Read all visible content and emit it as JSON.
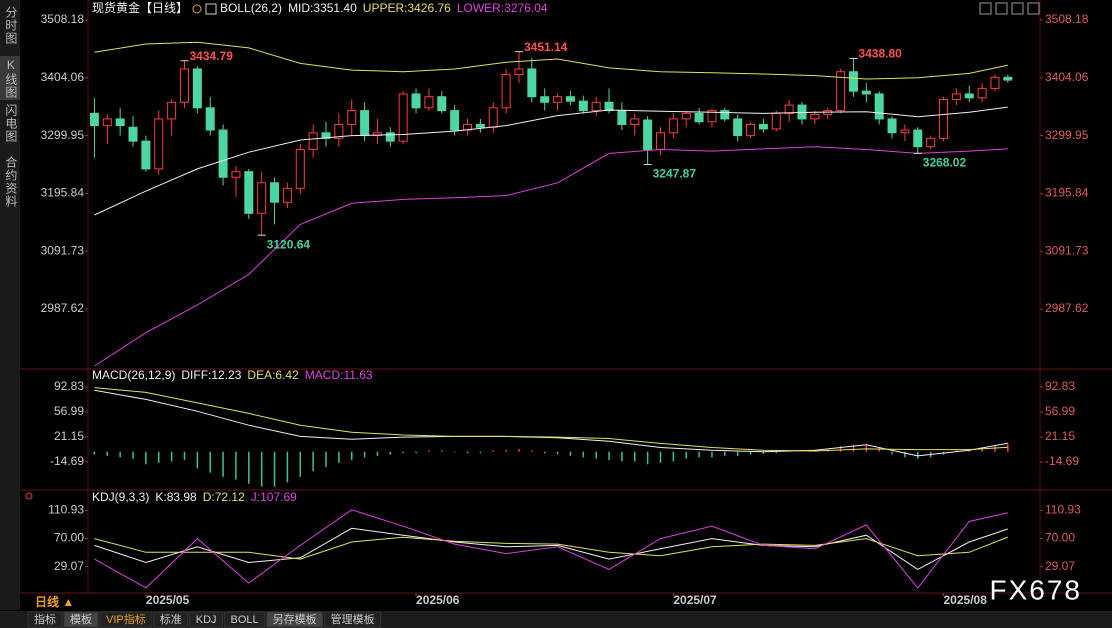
{
  "sidebar": {
    "tabs": [
      "分时图",
      "K线图",
      "闪电图",
      "合约资料"
    ]
  },
  "chart_data": [
    {
      "type": "candlestick",
      "title": "现货黄金【日线】",
      "indicator": "BOLL(26,2)",
      "up_color": "#ff3b3b",
      "down_color": "#4ed6a2",
      "open": [
        3340,
        3318,
        3330,
        3315,
        3290,
        3240,
        3330,
        3360,
        3420,
        3350,
        3310,
        3225,
        3235,
        3160,
        3215,
        3180,
        3205,
        3275,
        3305,
        3295,
        3320,
        3345,
        3300,
        3305,
        3290,
        3375,
        3350,
        3370,
        3345,
        3310,
        3320,
        3315,
        3350,
        3410,
        3420,
        3370,
        3360,
        3370,
        3362,
        3345,
        3360,
        3345,
        3320,
        3328,
        3275,
        3305,
        3330,
        3340,
        3325,
        3345,
        3330,
        3300,
        3320,
        3312,
        3340,
        3355,
        3330,
        3338,
        3345,
        3415,
        3380,
        3375,
        3330,
        3305,
        3310,
        3280,
        3295,
        3365,
        3375,
        3368,
        3385,
        3405
      ],
      "high": [
        3368,
        3338,
        3350,
        3335,
        3300,
        3345,
        3365,
        3434.79,
        3425,
        3370,
        3320,
        3245,
        3240,
        3235,
        3225,
        3215,
        3285,
        3320,
        3325,
        3340,
        3365,
        3360,
        3330,
        3315,
        3380,
        3385,
        3385,
        3380,
        3355,
        3330,
        3330,
        3360,
        3420,
        3451.14,
        3440,
        3385,
        3375,
        3380,
        3372,
        3370,
        3385,
        3360,
        3340,
        3335,
        3315,
        3340,
        3345,
        3350,
        3348,
        3350,
        3338,
        3325,
        3330,
        3345,
        3365,
        3360,
        3345,
        3350,
        3420,
        3438.8,
        3395,
        3380,
        3335,
        3320,
        3315,
        3300,
        3370,
        3385,
        3390,
        3395,
        3410,
        3410
      ],
      "low": [
        3260,
        3285,
        3300,
        3280,
        3235,
        3230,
        3300,
        3350,
        3340,
        3300,
        3210,
        3190,
        3150,
        3120.64,
        3140,
        3170,
        3195,
        3260,
        3280,
        3280,
        3300,
        3290,
        3285,
        3280,
        3285,
        3340,
        3345,
        3340,
        3300,
        3300,
        3305,
        3305,
        3340,
        3395,
        3360,
        3345,
        3345,
        3355,
        3340,
        3335,
        3340,
        3310,
        3300,
        3247.87,
        3265,
        3295,
        3315,
        3320,
        3315,
        3325,
        3290,
        3295,
        3305,
        3308,
        3325,
        3320,
        3320,
        3330,
        3340,
        3370,
        3360,
        3320,
        3295,
        3290,
        3268.02,
        3275,
        3290,
        3355,
        3360,
        3360,
        3380,
        3395
      ],
      "close": [
        3318,
        3330,
        3318,
        3290,
        3240,
        3330,
        3360,
        3420,
        3350,
        3310,
        3225,
        3235,
        3160,
        3215,
        3180,
        3205,
        3275,
        3305,
        3295,
        3320,
        3345,
        3300,
        3305,
        3290,
        3375,
        3350,
        3370,
        3345,
        3310,
        3320,
        3315,
        3350,
        3410,
        3420,
        3370,
        3360,
        3370,
        3362,
        3345,
        3360,
        3345,
        3320,
        3330,
        3275,
        3305,
        3330,
        3340,
        3325,
        3345,
        3330,
        3300,
        3320,
        3312,
        3340,
        3355,
        3330,
        3338,
        3345,
        3415,
        3380,
        3375,
        3330,
        3305,
        3310,
        3280,
        3295,
        3365,
        3375,
        3368,
        3385,
        3405,
        3400
      ],
      "series": [
        {
          "name": "MID:3351.40",
          "color": "#f0f0f0",
          "x": [
            0,
            4,
            8,
            12,
            16,
            20,
            24,
            28,
            32,
            36,
            40,
            44,
            48,
            52,
            56,
            60,
            64,
            68,
            71
          ],
          "values": [
            3157,
            3200,
            3240,
            3270,
            3292,
            3300,
            3302,
            3308,
            3318,
            3336,
            3346,
            3344,
            3342,
            3340,
            3342,
            3343,
            3334,
            3342,
            3351.4
          ]
        },
        {
          "name": "UPPER:3426.76",
          "color": "#e6e05a",
          "x": [
            0,
            4,
            8,
            12,
            16,
            20,
            24,
            28,
            32,
            36,
            40,
            44,
            48,
            52,
            56,
            60,
            64,
            68,
            71
          ],
          "values": [
            3450,
            3465,
            3468,
            3458,
            3430,
            3418,
            3415,
            3420,
            3432,
            3438,
            3422,
            3415,
            3413,
            3411,
            3408,
            3402,
            3404,
            3412,
            3426.76
          ]
        },
        {
          "name": "LOWER:3276.04",
          "color": "#e040e0",
          "x": [
            0,
            4,
            8,
            12,
            16,
            20,
            24,
            28,
            32,
            36,
            40,
            44,
            48,
            52,
            56,
            60,
            64,
            68,
            71
          ],
          "values": [
            2885,
            2945,
            2995,
            3050,
            3140,
            3178,
            3185,
            3188,
            3192,
            3215,
            3268,
            3275,
            3272,
            3276,
            3280,
            3275,
            3268,
            3272,
            3276.04
          ]
        }
      ],
      "annotations": [
        {
          "label": "3434.79",
          "x": 7,
          "y": 3434.79,
          "color": "#ff5050"
        },
        {
          "label": "3120.64",
          "x": 13,
          "y": 3120.64,
          "color": "#3fd39a"
        },
        {
          "label": "3451.14",
          "x": 33,
          "y": 3451.14,
          "color": "#ff5050"
        },
        {
          "label": "3247.87",
          "x": 43,
          "y": 3247.87,
          "color": "#3fd39a"
        },
        {
          "label": "3438.80",
          "x": 59,
          "y": 3438.8,
          "color": "#ff5050"
        },
        {
          "label": "3268.02",
          "x": 64,
          "y": 3268.02,
          "color": "#3fd39a"
        }
      ],
      "xlim": [
        -0.5,
        73.5
      ],
      "ylim": [
        2883.2,
        3526.2
      ],
      "yticks": [
        3508.18,
        3404.06,
        3299.95,
        3195.84,
        3091.73,
        2987.62
      ]
    },
    {
      "type": "macd",
      "title": "MACD(26,12,9)",
      "name": "MACD:11.63",
      "name_color": "#e040e0",
      "up_color": "#ff3b3b",
      "down_color": "#3cc19a",
      "values": [
        -4,
        -6,
        -8,
        -10,
        -18,
        -16,
        -14,
        -12,
        -24,
        -30,
        -36,
        -40,
        -46,
        -50,
        -50,
        -44,
        -36,
        -28,
        -22,
        -16,
        -12,
        -8,
        -6,
        -4,
        -2,
        -2,
        2,
        2,
        -1,
        -2,
        -2,
        2,
        3,
        4,
        2,
        -2,
        -4,
        -6,
        -8,
        -10,
        -12,
        -14,
        -14,
        -18,
        -16,
        -14,
        -10,
        -8,
        -8,
        -6,
        -6,
        -4,
        -3,
        -2,
        2,
        2,
        2,
        3,
        8,
        10,
        9,
        6,
        -4,
        -8,
        -10,
        -8,
        -4,
        2,
        4,
        6,
        9,
        11.63
      ],
      "series": [
        {
          "name": "DIFF:12.23",
          "color": "#f0f0f0",
          "x": [
            0,
            4,
            8,
            12,
            16,
            20,
            24,
            28,
            32,
            36,
            40,
            44,
            48,
            52,
            56,
            60,
            64,
            68,
            71
          ],
          "values": [
            88,
            75,
            58,
            38,
            22,
            18,
            21,
            22,
            22,
            20,
            15,
            6,
            2,
            0,
            2,
            10,
            -6,
            2,
            12.23
          ]
        },
        {
          "name": "DEA:6.42",
          "color": "#e6e05a",
          "x": [
            0,
            4,
            8,
            12,
            16,
            20,
            24,
            28,
            32,
            36,
            40,
            44,
            48,
            52,
            56,
            60,
            64,
            68,
            71
          ],
          "values": [
            92,
            85,
            70,
            55,
            38,
            28,
            24,
            22,
            22,
            21,
            19,
            12,
            6,
            2,
            1,
            4,
            3,
            3,
            6.42
          ]
        }
      ],
      "xlim": [
        -0.5,
        73.5
      ],
      "ylim": [
        -52,
        114.3
      ],
      "yticks": [
        92.83,
        56.99,
        21.15,
        -14.69
      ]
    },
    {
      "type": "line",
      "title": "KDJ(9,3,3)",
      "series": [
        {
          "name": "K:83.98",
          "color": "#f0f0f0",
          "x": [
            0,
            4,
            8,
            12,
            16,
            20,
            24,
            28,
            32,
            36,
            40,
            44,
            48,
            52,
            56,
            60,
            64,
            68,
            71
          ],
          "values": [
            60,
            35,
            58,
            35,
            42,
            85,
            75,
            65,
            58,
            60,
            40,
            55,
            70,
            60,
            58,
            75,
            25,
            65,
            83.98
          ]
        },
        {
          "name": "D:72.12",
          "color": "#e6e05a",
          "x": [
            0,
            4,
            8,
            12,
            16,
            20,
            24,
            28,
            32,
            36,
            40,
            44,
            48,
            52,
            56,
            60,
            64,
            68,
            71
          ],
          "values": [
            70,
            50,
            50,
            50,
            40,
            65,
            72,
            66,
            63,
            62,
            50,
            45,
            58,
            62,
            60,
            70,
            45,
            50,
            72.12
          ]
        },
        {
          "name": "J:107.69",
          "color": "#e040e0",
          "x": [
            0,
            4,
            8,
            12,
            16,
            20,
            24,
            28,
            32,
            36,
            40,
            44,
            48,
            52,
            56,
            60,
            64,
            68,
            71
          ],
          "values": [
            40,
            -2,
            70,
            5,
            60,
            112,
            88,
            62,
            48,
            58,
            25,
            70,
            88,
            60,
            55,
            90,
            -2,
            95,
            107.69
          ]
        }
      ],
      "xlim": [
        -0.5,
        73.5
      ],
      "ylim": [
        -8,
        138
      ],
      "yticks": [
        110.93,
        {
          "value": 70,
          "label": "70.00"
        },
        29.07
      ],
      "xticks": [
        {
          "value": 4,
          "label": "2025/05"
        },
        {
          "value": 25,
          "label": "2025/06"
        },
        {
          "value": 45,
          "label": "2025/07"
        },
        {
          "value": 66,
          "label": "2025/08"
        }
      ]
    }
  ],
  "footer": {
    "period": "日线 ▲",
    "tabs": [
      "指标",
      "模板",
      "VIP指标",
      "标准",
      "KDJ",
      "BOLL",
      "另存模板",
      "管理模板"
    ]
  },
  "watermark": "FX678"
}
